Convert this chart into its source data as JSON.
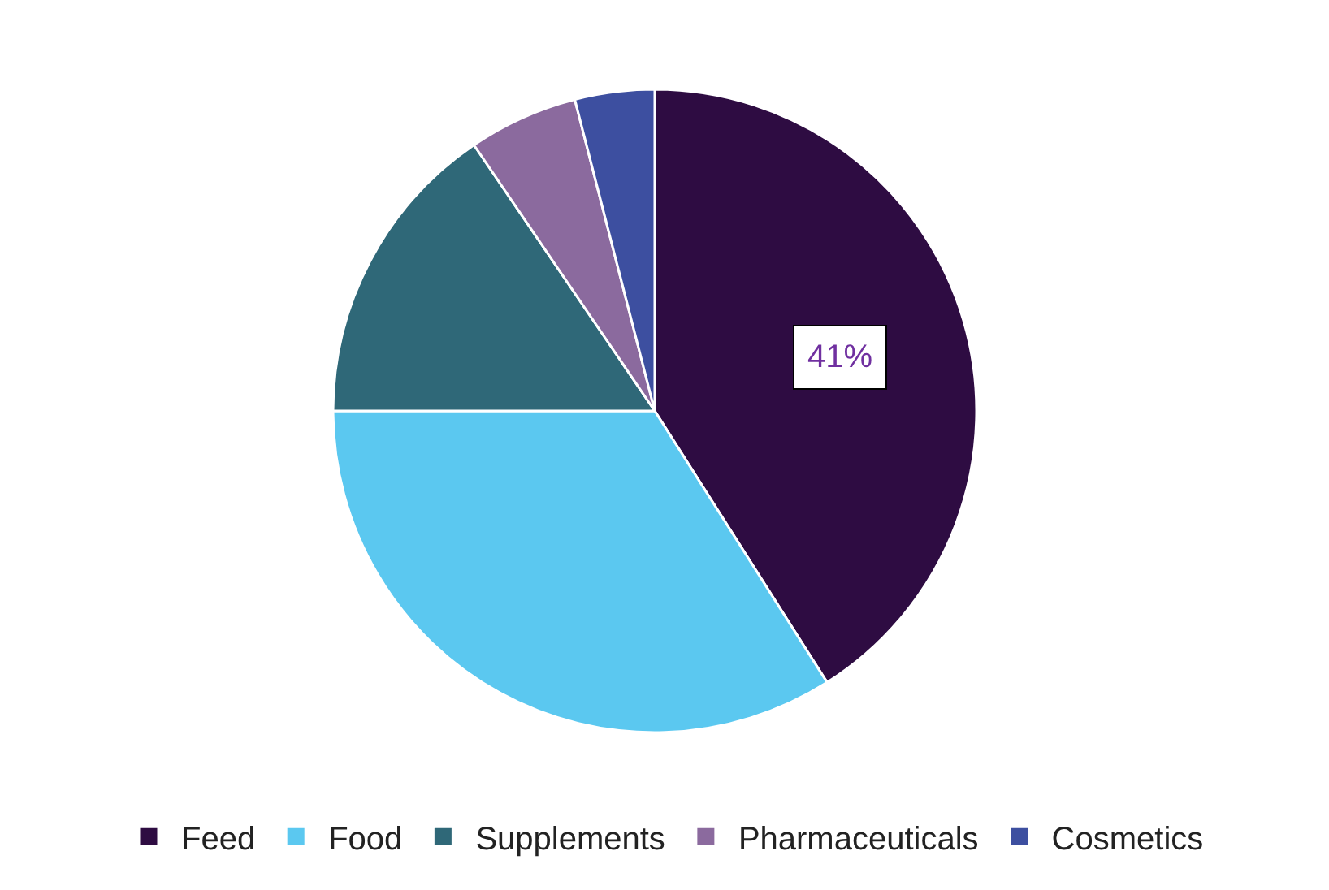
{
  "chart_data": {
    "type": "pie",
    "categories": [
      "Feed",
      "Food",
      "Supplements",
      "Pharmaceuticals",
      "Cosmetics"
    ],
    "values": [
      41,
      34,
      15.5,
      5.5,
      4
    ],
    "colors": [
      "#2e0c42",
      "#5bc8f0",
      "#2f6878",
      "#8b6a9e",
      "#3d4fa0"
    ],
    "value_labels": [
      "41%",
      null,
      null,
      null,
      null
    ],
    "legend": "bottom"
  }
}
